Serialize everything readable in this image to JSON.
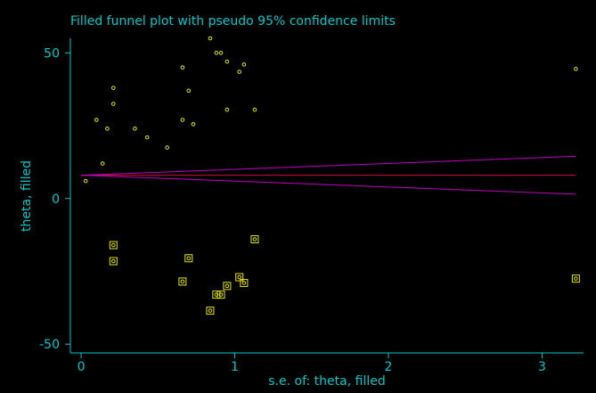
{
  "colors": {
    "background": "#000000",
    "text": "#00c8c8",
    "axis": "#00c8c8",
    "observed_marker": "#e6e600",
    "filled_marker": "#e6e600",
    "pooled_line": "#d0103a",
    "confidence_limits": "#c000c0"
  },
  "chart_data": {
    "type": "scatter",
    "title": "Filled funnel plot with pseudo 95% confidence limits",
    "xlabel": "s.e. of: theta, filled",
    "ylabel": "theta, filled",
    "xlim": [
      -0.07,
      3.27
    ],
    "ylim": [
      -53,
      55
    ],
    "xticks": [
      0,
      1,
      2,
      3
    ],
    "xtick_labels": [
      "0",
      "1",
      "2",
      "3"
    ],
    "yticks": [
      -50,
      0,
      50
    ],
    "ytick_labels": [
      "-50",
      "0",
      "50"
    ],
    "grid": false,
    "legend": "none",
    "pooled_estimate": 8,
    "confidence_limits": {
      "x": [
        0,
        3.22
      ],
      "upper": [
        8,
        14.5
      ],
      "lower": [
        8,
        1.5
      ]
    },
    "series": [
      {
        "marker": "circle",
        "points": [
          {
            "x": 0.03,
            "y": 6
          },
          {
            "x": 0.1,
            "y": 27
          },
          {
            "x": 0.14,
            "y": 12
          },
          {
            "x": 0.17,
            "y": 24
          },
          {
            "x": 0.21,
            "y": 38
          },
          {
            "x": 0.21,
            "y": 32.5
          },
          {
            "x": 0.35,
            "y": 24
          },
          {
            "x": 0.43,
            "y": 21
          },
          {
            "x": 0.56,
            "y": 17.5
          },
          {
            "x": 0.66,
            "y": 45
          },
          {
            "x": 0.66,
            "y": 27
          },
          {
            "x": 0.7,
            "y": 37
          },
          {
            "x": 0.73,
            "y": 25.5
          },
          {
            "x": 0.84,
            "y": 55
          },
          {
            "x": 0.88,
            "y": 50
          },
          {
            "x": 0.91,
            "y": 50
          },
          {
            "x": 0.95,
            "y": 47
          },
          {
            "x": 0.95,
            "y": 30.5
          },
          {
            "x": 1.03,
            "y": 43.5
          },
          {
            "x": 1.06,
            "y": 46
          },
          {
            "x": 1.13,
            "y": 30.5
          },
          {
            "x": 3.22,
            "y": 44.5
          }
        ]
      },
      {
        "marker": "boxed-circle",
        "points": [
          {
            "x": 0.21,
            "y": -16
          },
          {
            "x": 0.21,
            "y": -21.5
          },
          {
            "x": 0.66,
            "y": -28.5
          },
          {
            "x": 0.7,
            "y": -20.5
          },
          {
            "x": 0.84,
            "y": -38.5
          },
          {
            "x": 0.88,
            "y": -33
          },
          {
            "x": 0.91,
            "y": -33
          },
          {
            "x": 0.95,
            "y": -30
          },
          {
            "x": 1.03,
            "y": -27
          },
          {
            "x": 1.06,
            "y": -29
          },
          {
            "x": 1.13,
            "y": -14
          },
          {
            "x": 3.22,
            "y": -27.5
          }
        ]
      }
    ]
  }
}
